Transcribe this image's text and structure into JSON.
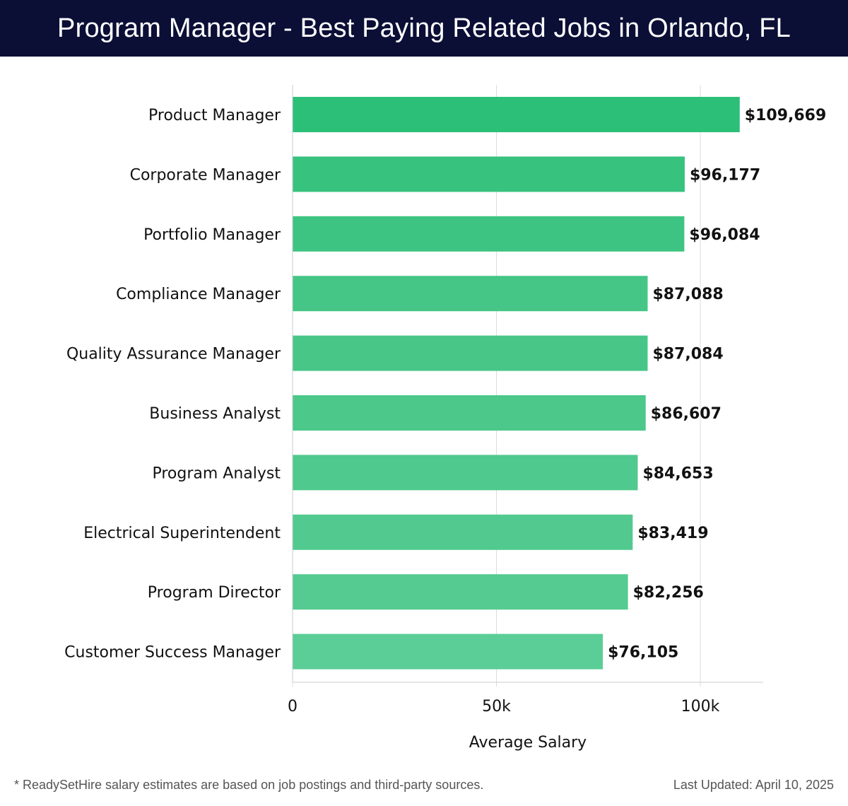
{
  "header": {
    "title": "Program Manager - Best Paying Related Jobs in Orlando, FL"
  },
  "chart_data": {
    "type": "bar",
    "orientation": "horizontal",
    "title": "Program Manager - Best Paying Related Jobs in Orlando, FL",
    "xlabel": "Average Salary",
    "ylabel": "",
    "xlim": [
      0,
      115000
    ],
    "ticks": [
      0,
      50000,
      100000
    ],
    "tick_labels": [
      "0",
      "50k",
      "100k"
    ],
    "grid": true,
    "categories": [
      "Product Manager",
      "Corporate Manager",
      "Portfolio Manager",
      "Compliance Manager",
      "Quality Assurance Manager",
      "Business Analyst",
      "Program Analyst",
      "Electrical Superintendent",
      "Program Director",
      "Customer Success Manager"
    ],
    "values": [
      109669,
      96177,
      96084,
      87088,
      87084,
      86607,
      84653,
      83419,
      82256,
      76105
    ],
    "value_labels": [
      "$109,669",
      "$96,177",
      "$96,084",
      "$87,088",
      "$87,084",
      "$86,607",
      "$84,653",
      "$83,419",
      "$82,256",
      "$76,105"
    ],
    "bar_colors": [
      "#2bbf78",
      "#37c27e",
      "#3ec482",
      "#45c686",
      "#47c688",
      "#4bc88a",
      "#4fc98d",
      "#52ca8f",
      "#55cb91",
      "#5bcd96"
    ]
  },
  "footer": {
    "note": "* ReadySetHire salary estimates are based on job postings and third-party sources.",
    "updated": "Last Updated: April 10, 2025"
  }
}
